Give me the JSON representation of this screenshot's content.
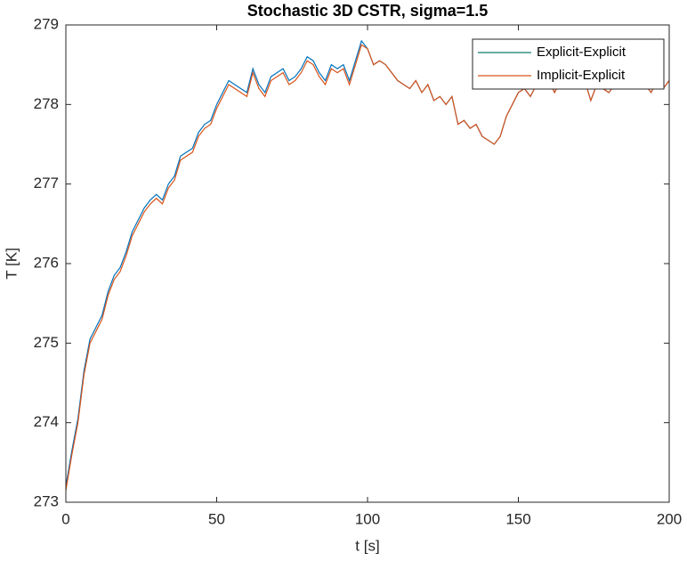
{
  "chart_data": {
    "type": "line",
    "title": "Stochastic 3D CSTR, sigma=1.5",
    "x_label": "t [s]",
    "y_label": "T [K]",
    "x": [
      0,
      2,
      4,
      6,
      8,
      10,
      12,
      14,
      16,
      18,
      20,
      22,
      24,
      26,
      28,
      30,
      32,
      34,
      36,
      38,
      40,
      42,
      44,
      46,
      48,
      50,
      52,
      54,
      56,
      58,
      60,
      62,
      64,
      66,
      68,
      70,
      72,
      74,
      76,
      78,
      80,
      82,
      84,
      86,
      88,
      90,
      92,
      94,
      96,
      98,
      100,
      102,
      104,
      106,
      108,
      110,
      112,
      114,
      116,
      118,
      120,
      122,
      124,
      126,
      128,
      130,
      132,
      134,
      136,
      138,
      140,
      142,
      144,
      146,
      148,
      150,
      152,
      154,
      156,
      158,
      160,
      162,
      164,
      166,
      168,
      170,
      172,
      174,
      176,
      178,
      180,
      182,
      184,
      186,
      188,
      190,
      192,
      194,
      196,
      198,
      200
    ],
    "series": [
      {
        "name": "Explicit-Explicit",
        "color": "#0072bd",
        "legend_color": "#0f7b6e",
        "values": [
          273.2,
          273.65,
          274.05,
          274.65,
          275.05,
          275.2,
          275.35,
          275.65,
          275.85,
          275.95,
          276.15,
          276.4,
          276.55,
          276.7,
          276.8,
          276.87,
          276.8,
          277.0,
          277.1,
          277.35,
          277.4,
          277.45,
          277.65,
          277.75,
          277.8,
          278.0,
          278.15,
          278.3,
          278.25,
          278.2,
          278.15,
          278.45,
          278.25,
          278.15,
          278.35,
          278.4,
          278.45,
          278.3,
          278.35,
          278.45,
          278.6,
          278.55,
          278.4,
          278.3,
          278.5,
          278.45,
          278.5,
          278.3,
          278.55,
          278.8,
          278.7,
          278.5,
          278.55,
          278.5,
          278.4,
          278.3,
          278.25,
          278.2,
          278.3,
          278.15,
          278.25,
          278.05,
          278.1,
          278.0,
          278.1,
          277.75,
          277.8,
          277.7,
          277.75,
          277.6,
          277.55,
          277.5,
          277.6,
          277.85,
          278.0,
          278.15,
          278.2,
          278.1,
          278.25,
          278.2,
          278.3,
          278.15,
          278.3,
          278.2,
          278.25,
          278.35,
          278.3,
          278.05,
          278.25,
          278.2,
          278.15,
          278.25,
          278.2,
          278.3,
          278.25,
          278.2,
          278.25,
          278.15,
          278.3,
          278.2,
          278.3
        ]
      },
      {
        "name": "Implicit-Explicit",
        "color": "#d95319",
        "values": [
          273.15,
          273.6,
          274.0,
          274.6,
          275.0,
          275.15,
          275.3,
          275.6,
          275.8,
          275.9,
          276.1,
          276.35,
          276.5,
          276.65,
          276.75,
          276.82,
          276.75,
          276.95,
          277.05,
          277.3,
          277.35,
          277.4,
          277.6,
          277.7,
          277.75,
          277.95,
          278.1,
          278.25,
          278.2,
          278.15,
          278.1,
          278.4,
          278.2,
          278.1,
          278.3,
          278.35,
          278.4,
          278.25,
          278.3,
          278.4,
          278.55,
          278.5,
          278.35,
          278.25,
          278.45,
          278.4,
          278.45,
          278.25,
          278.5,
          278.75,
          278.7,
          278.5,
          278.55,
          278.5,
          278.4,
          278.3,
          278.25,
          278.2,
          278.3,
          278.15,
          278.25,
          278.05,
          278.1,
          278.0,
          278.1,
          277.75,
          277.8,
          277.7,
          277.75,
          277.6,
          277.55,
          277.5,
          277.6,
          277.85,
          278.0,
          278.15,
          278.2,
          278.1,
          278.25,
          278.2,
          278.3,
          278.15,
          278.3,
          278.2,
          278.25,
          278.35,
          278.3,
          278.05,
          278.25,
          278.2,
          278.15,
          278.25,
          278.2,
          278.3,
          278.25,
          278.2,
          278.25,
          278.15,
          278.3,
          278.2,
          278.3
        ]
      }
    ],
    "xlim": [
      0,
      200
    ],
    "xticks": [
      0,
      50,
      100,
      150,
      200
    ],
    "ylim": [
      273,
      279
    ],
    "yticks": [
      273,
      274,
      275,
      276,
      277,
      278,
      279
    ],
    "grid": false,
    "legend": "northeast"
  }
}
